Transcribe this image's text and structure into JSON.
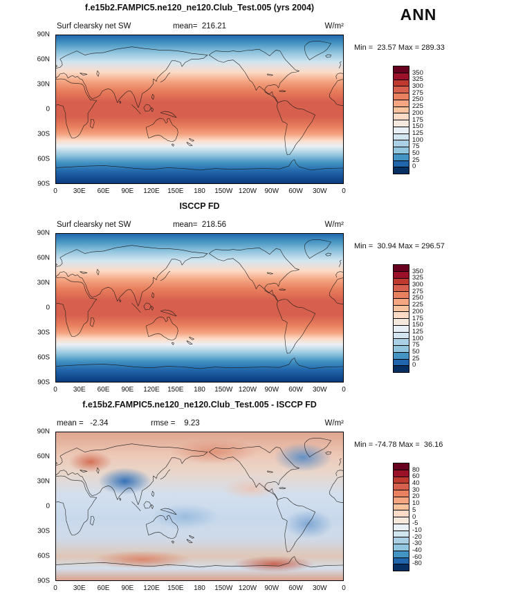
{
  "ann_label": "ANN",
  "panels": [
    {
      "title": "f.e15b2.FAMPIC5.ne120_ne120.Club_Test.005 (yrs 2004)",
      "var_label": "Surf clearsky net SW",
      "mean_label": "mean=  216.21",
      "units": "W/m²",
      "stats_line": "Min =  23.57 Max = 289.33",
      "xticks": [
        "0",
        "30E",
        "60E",
        "90E",
        "120E",
        "150E",
        "180",
        "150W",
        "120W",
        "90W",
        "60W",
        "30W",
        "0"
      ],
      "yticks": [
        "90N",
        "60N",
        "30N",
        "0",
        "30S",
        "60S",
        "90S"
      ],
      "colorbar": {
        "labels": [
          "350",
          "325",
          "300",
          "275",
          "250",
          "225",
          "200",
          "175",
          "150",
          "125",
          "100",
          "75",
          "50",
          "25",
          "0"
        ],
        "colors": [
          "#67001f",
          "#9b1127",
          "#c0392e",
          "#d6604d",
          "#e9805f",
          "#f4a582",
          "#f9c39e",
          "#fddbc7",
          "#f5e9de",
          "#e9f0f5",
          "#d1e5f0",
          "#abd0e6",
          "#92c5de",
          "#4393c3",
          "#2166ac",
          "#053061"
        ]
      }
    },
    {
      "title": "ISCCP FD",
      "var_label": "Surf clearsky net SW",
      "mean_label": "mean=  218.56",
      "units": "W/m²",
      "stats_line": "Min =  30.94 Max = 296.57",
      "xticks": [
        "0",
        "30E",
        "60E",
        "90E",
        "120E",
        "150E",
        "180",
        "150W",
        "120W",
        "90W",
        "60W",
        "30W",
        "0"
      ],
      "yticks": [
        "90N",
        "60N",
        "30N",
        "0",
        "30S",
        "60S",
        "90S"
      ],
      "colorbar": {
        "labels": [
          "350",
          "325",
          "300",
          "275",
          "250",
          "225",
          "200",
          "175",
          "150",
          "125",
          "100",
          "75",
          "50",
          "25",
          "0"
        ],
        "colors": [
          "#67001f",
          "#9b1127",
          "#c0392e",
          "#d6604d",
          "#e9805f",
          "#f4a582",
          "#f9c39e",
          "#fddbc7",
          "#f5e9de",
          "#e9f0f5",
          "#d1e5f0",
          "#abd0e6",
          "#92c5de",
          "#4393c3",
          "#2166ac",
          "#053061"
        ]
      }
    },
    {
      "title": "f.e15b2.FAMPIC5.ne120_ne120.Club_Test.005 - ISCCP FD",
      "mean_label": "mean =   -2.34",
      "rmse_label": "rmse =    9.23",
      "units": "W/m²",
      "stats_line": "Min = -74.78 Max =  36.16",
      "xticks": [
        "0",
        "30E",
        "60E",
        "90E",
        "120E",
        "150E",
        "180",
        "150W",
        "120W",
        "90W",
        "60W",
        "30W",
        "0"
      ],
      "yticks": [
        "90N",
        "60N",
        "30N",
        "0",
        "30S",
        "60S",
        "90S"
      ],
      "colorbar": {
        "labels": [
          "80",
          "60",
          "40",
          "30",
          "20",
          "10",
          "5",
          "0",
          "-5",
          "-10",
          "-20",
          "-30",
          "-40",
          "-60",
          "-80"
        ],
        "colors": [
          "#67001f",
          "#9b1127",
          "#c0392e",
          "#d6604d",
          "#e9805f",
          "#f4a582",
          "#f9c39e",
          "#fddbc7",
          "#f5e9de",
          "#e9f0f5",
          "#d1e5f0",
          "#abd0e6",
          "#92c5de",
          "#4393c3",
          "#2166ac",
          "#053061"
        ]
      }
    }
  ],
  "chart_data": [
    {
      "type": "heatmap",
      "subtype": "global lat-lon filled contour map",
      "title": "f.e15b2.FAMPIC5.ne120_ne120.Club_Test.005 (yrs 2004)",
      "variable": "Surf clearsky net SW",
      "season": "ANN",
      "units": "W/m²",
      "mean": 216.21,
      "min": 23.57,
      "max": 289.33,
      "levels": [
        0,
        25,
        50,
        75,
        100,
        125,
        150,
        175,
        200,
        225,
        250,
        275,
        300,
        325,
        350
      ],
      "lon_ticks": [
        "0",
        "30E",
        "60E",
        "90E",
        "120E",
        "150E",
        "180",
        "150W",
        "120W",
        "90W",
        "60W",
        "30W",
        "0"
      ],
      "lat_ticks": [
        "90N",
        "60N",
        "30N",
        "0",
        "30S",
        "60S",
        "90S"
      ],
      "lon_range_deg": [
        0,
        360
      ],
      "lat_range_deg": [
        -90,
        90
      ],
      "palette": "blue-white-red (low to high)",
      "pattern": "zonally banded: ~250-290 W/m² in tropics decreasing to ~0-75 W/m² at both poles"
    },
    {
      "type": "heatmap",
      "subtype": "global lat-lon filled contour map",
      "title": "ISCCP FD",
      "variable": "Surf clearsky net SW",
      "season": "ANN",
      "units": "W/m²",
      "mean": 218.56,
      "min": 30.94,
      "max": 296.57,
      "levels": [
        0,
        25,
        50,
        75,
        100,
        125,
        150,
        175,
        200,
        225,
        250,
        275,
        300,
        325,
        350
      ],
      "lon_ticks": [
        "0",
        "30E",
        "60E",
        "90E",
        "120E",
        "150E",
        "180",
        "150W",
        "120W",
        "90W",
        "60W",
        "30W",
        "0"
      ],
      "lat_ticks": [
        "90N",
        "60N",
        "30N",
        "0",
        "30S",
        "60S",
        "90S"
      ],
      "lon_range_deg": [
        0,
        360
      ],
      "lat_range_deg": [
        -90,
        90
      ],
      "palette": "blue-white-red (low to high)",
      "pattern": "zonally banded: ~250-300 W/m² in tropics decreasing toward both poles"
    },
    {
      "type": "heatmap",
      "subtype": "global lat-lon difference map (model minus observations)",
      "title": "f.e15b2.FAMPIC5.ne120_ne120.Club_Test.005 - ISCCP FD",
      "variable": "Surf clearsky net SW difference",
      "season": "ANN",
      "units": "W/m²",
      "mean": -2.34,
      "rmse": 9.23,
      "min": -74.78,
      "max": 36.16,
      "levels": [
        -80,
        -60,
        -40,
        -30,
        -20,
        -10,
        -5,
        0,
        5,
        10,
        20,
        30,
        40,
        60,
        80
      ],
      "lon_ticks": [
        "0",
        "30E",
        "60E",
        "90E",
        "120E",
        "150E",
        "180",
        "150W",
        "120W",
        "90W",
        "60W",
        "30W",
        "0"
      ],
      "lat_ticks": [
        "90N",
        "60N",
        "30N",
        "0",
        "30S",
        "60S",
        "90S"
      ],
      "lon_range_deg": [
        0,
        360
      ],
      "lat_range_deg": [
        -90,
        90
      ],
      "palette": "blue-white-red (negative to positive)",
      "pattern": "mottled weak positive (red) biases over NH continents/Arctic, weak negative (blue) over tropical and SH oceans, strong negative spot over Tibetan Plateau, mixed band near 60S"
    }
  ]
}
